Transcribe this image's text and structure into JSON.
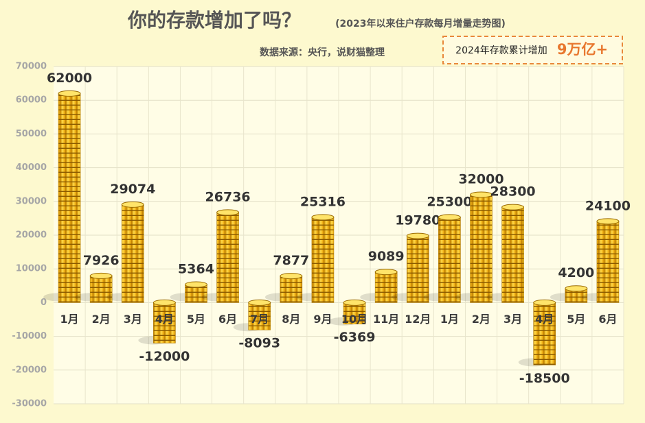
{
  "chart_data": {
    "type": "bar",
    "title": "你的存款增加了吗？",
    "subtitle": "(2023年以来住户存款每月增量走势图)",
    "source": "数据来源：央行，说财猫整理",
    "annotation": {
      "text": "2024年存款累计增加",
      "highlight": "9万亿+"
    },
    "categories": [
      "1月",
      "2月",
      "3月",
      "4月",
      "5月",
      "6月",
      "7月",
      "8月",
      "9月",
      "10月",
      "11月",
      "12月",
      "1月",
      "2月",
      "3月",
      "4月",
      "5月",
      "6月"
    ],
    "values": [
      62000,
      7926,
      29074,
      -12000,
      5364,
      26736,
      -8093,
      7877,
      25316,
      -6369,
      9089,
      19780,
      25300,
      32000,
      28300,
      -18500,
      4200,
      24100
    ],
    "color": "#f5c024",
    "ylim": [
      -30000,
      70000
    ],
    "yticks": [
      -30000,
      -20000,
      -10000,
      0,
      10000,
      20000,
      30000,
      40000,
      50000,
      60000,
      70000
    ],
    "grid": true
  }
}
